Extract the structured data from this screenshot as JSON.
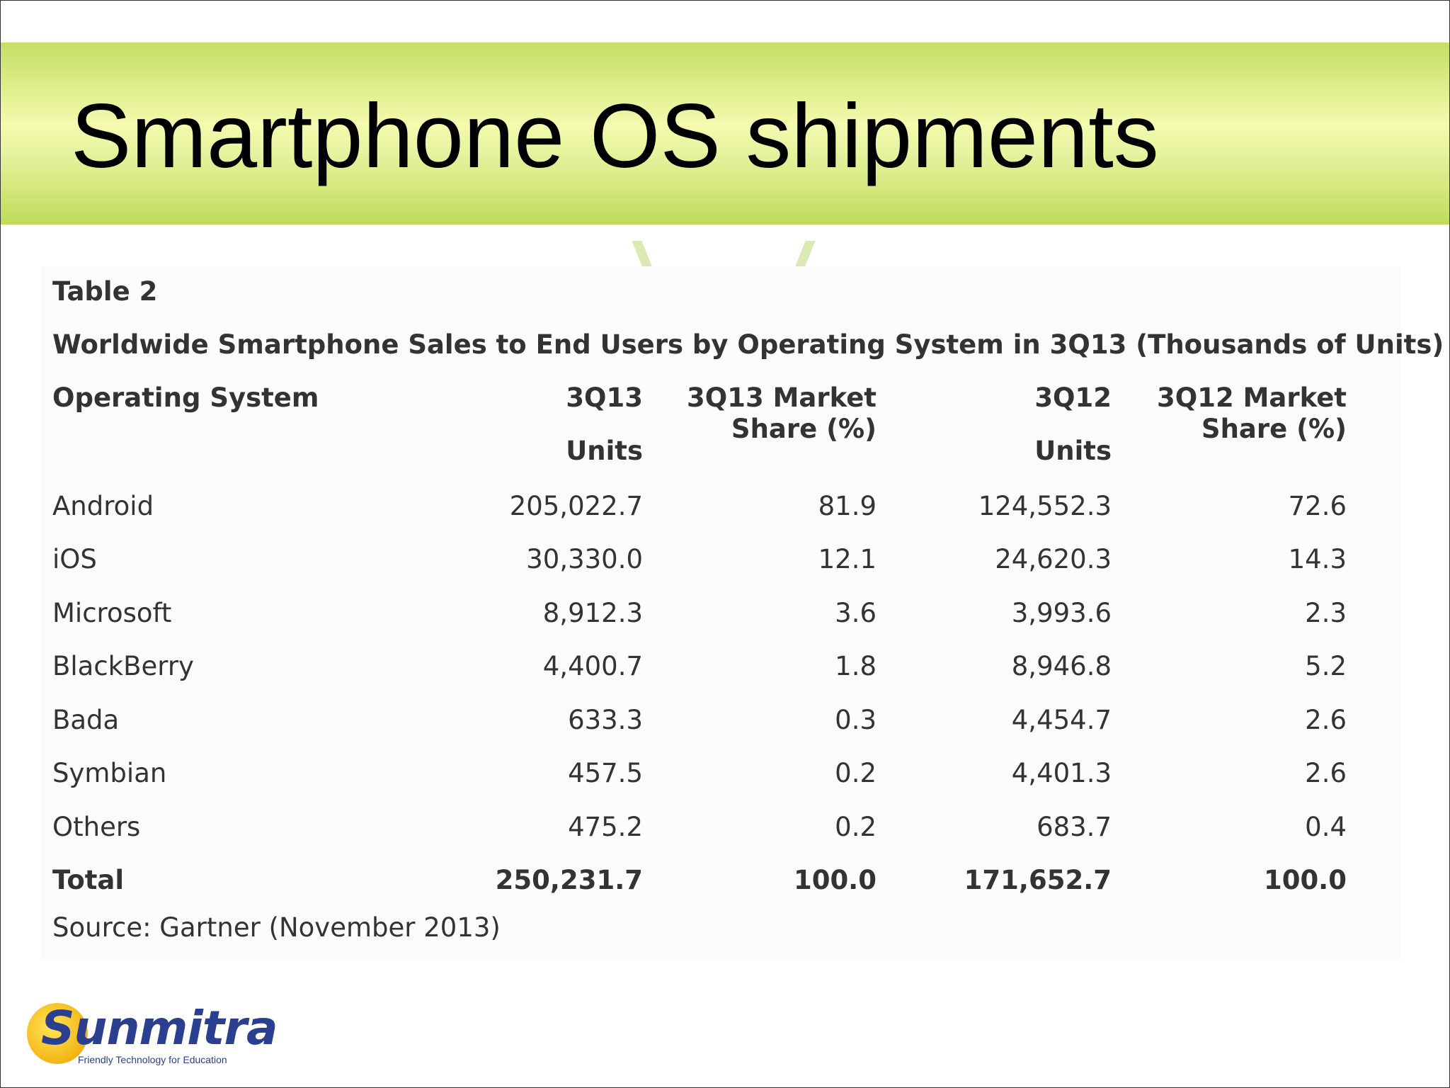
{
  "slide": {
    "title": "Smartphone OS shipments"
  },
  "table": {
    "label": "Table 2",
    "caption": "Worldwide Smartphone Sales to End Users by Operating System in 3Q13 (Thousands of Units)",
    "headers": {
      "os": "Operating System",
      "q13_units_line1": "3Q13",
      "q13_units_line2": "Units",
      "q13_share_line1": "3Q13 Market",
      "q13_share_line2": "Share (%)",
      "q12_units_line1": "3Q12",
      "q12_units_line2": "Units",
      "q12_share_line1": "3Q12 Market",
      "q12_share_line2": "Share (%)"
    },
    "rows": [
      {
        "os": "Android",
        "q13_units": "205,022.7",
        "q13_share": "81.9",
        "q12_units": "124,552.3",
        "q12_share": "72.6"
      },
      {
        "os": "iOS",
        "q13_units": "30,330.0",
        "q13_share": "12.1",
        "q12_units": "24,620.3",
        "q12_share": "14.3"
      },
      {
        "os": "Microsoft",
        "q13_units": "8,912.3",
        "q13_share": "3.6",
        "q12_units": "3,993.6",
        "q12_share": "2.3"
      },
      {
        "os": "BlackBerry",
        "q13_units": "4,400.7",
        "q13_share": "1.8",
        "q12_units": "8,946.8",
        "q12_share": "5.2"
      },
      {
        "os": "Bada",
        "q13_units": "633.3",
        "q13_share": "0.3",
        "q12_units": "4,454.7",
        "q12_share": "2.6"
      },
      {
        "os": "Symbian",
        "q13_units": "457.5",
        "q13_share": "0.2",
        "q12_units": "4,401.3",
        "q12_share": "2.6"
      },
      {
        "os": "Others",
        "q13_units": "475.2",
        "q13_share": "0.2",
        "q12_units": "683.7",
        "q12_share": "0.4"
      }
    ],
    "total": {
      "os": "Total",
      "q13_units": "250,231.7",
      "q13_share": "100.0",
      "q12_units": "171,652.7",
      "q12_share": "100.0"
    },
    "source": "Source: Gartner (November 2013)"
  },
  "logo": {
    "name": "Sunmitra",
    "tagline": "Friendly Technology for Education"
  },
  "colors": {
    "title_band": "#c3df63",
    "logo_blue": "#2a3f8f",
    "logo_sun": "#f3b514"
  }
}
